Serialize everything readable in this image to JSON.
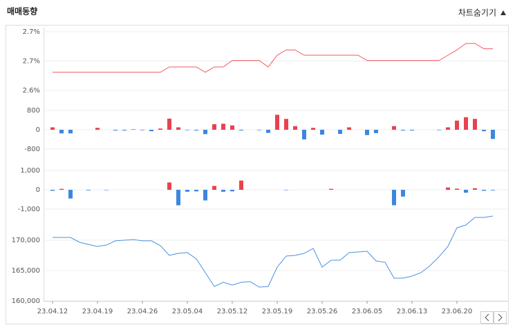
{
  "header": {
    "title": "매매동향",
    "toggle": "차트숨기기"
  },
  "chart_data": [
    {
      "type": "line",
      "color": "#f0585c",
      "values": [
        2.671,
        2.671,
        2.671,
        2.671,
        2.671,
        2.671,
        2.671,
        2.671,
        2.671,
        2.671,
        2.671,
        2.671,
        2.671,
        2.68,
        2.68,
        2.68,
        2.68,
        2.671,
        2.68,
        2.68,
        2.691,
        2.691,
        2.691,
        2.691,
        2.68,
        2.7,
        2.709,
        2.709,
        2.7,
        2.7,
        2.7,
        2.7,
        2.7,
        2.7,
        2.7,
        2.691,
        2.691,
        2.691,
        2.691,
        2.691,
        2.691,
        2.691,
        2.691,
        2.691,
        2.7,
        2.709,
        2.72,
        2.72,
        2.711,
        2.711
      ],
      "ylim": [
        2.64,
        2.74
      ],
      "yticks": [
        {
          "value": 2.74,
          "label": "2.7%"
        },
        {
          "value": 2.69,
          "label": "2.7%"
        },
        {
          "value": 2.64,
          "label": "2.6%"
        }
      ],
      "grid": true
    },
    {
      "type": "bar",
      "colors": {
        "positive": "#e8424f",
        "negative": "#3d86e0"
      },
      "values": [
        100,
        -150,
        -150,
        0,
        0,
        80,
        0,
        -30,
        -30,
        20,
        -20,
        -60,
        50,
        460,
        100,
        -20,
        -30,
        -180,
        230,
        250,
        180,
        -30,
        0,
        -20,
        -130,
        620,
        450,
        150,
        -400,
        80,
        -200,
        0,
        -170,
        100,
        0,
        -220,
        -140,
        0,
        150,
        -30,
        -30,
        0,
        0,
        -20,
        100,
        380,
        520,
        450,
        -60,
        -380
      ],
      "ylim": [
        -1100,
        1100
      ],
      "yticks": [
        800,
        0,
        -800
      ],
      "grid": true
    },
    {
      "type": "bar",
      "colors": {
        "positive": "#e8424f",
        "negative": "#3d86e0"
      },
      "values": [
        -50,
        50,
        -450,
        0,
        -30,
        0,
        -20,
        0,
        0,
        0,
        0,
        0,
        0,
        380,
        -800,
        -100,
        -80,
        -550,
        200,
        -100,
        -80,
        480,
        0,
        0,
        0,
        0,
        -20,
        0,
        0,
        0,
        0,
        50,
        0,
        0,
        0,
        0,
        0,
        0,
        -800,
        -350,
        0,
        0,
        0,
        0,
        120,
        60,
        -150,
        80,
        -50,
        -30
      ],
      "ylim": [
        -1100,
        1100
      ],
      "yticks": [
        {
          "value": 1000,
          "label": "1,000"
        },
        0,
        {
          "value": -1000,
          "label": "-1,000"
        }
      ],
      "grid": true
    },
    {
      "type": "line",
      "color": "#4a90e2",
      "categories": [
        "23.04.12",
        null,
        null,
        null,
        null,
        "23.04.19",
        null,
        null,
        null,
        null,
        "23.04.26",
        null,
        null,
        null,
        null,
        "23.05.04",
        null,
        null,
        null,
        null,
        "23.05.12",
        null,
        null,
        null,
        null,
        "23.05.19",
        null,
        null,
        null,
        null,
        "23.05.26",
        null,
        null,
        null,
        null,
        "23.06.05",
        null,
        null,
        null,
        null,
        "23.06.13",
        null,
        null,
        null,
        null,
        "23.06.20",
        null,
        null,
        null,
        null
      ],
      "values": [
        170450,
        170450,
        170450,
        169660,
        169300,
        168980,
        169200,
        169900,
        170000,
        170100,
        169900,
        169900,
        169100,
        167500,
        167840,
        167950,
        166930,
        164660,
        162390,
        163070,
        162610,
        163070,
        163180,
        162270,
        162390,
        165570,
        167390,
        167500,
        167840,
        168640,
        165570,
        166700,
        166700,
        167950,
        168070,
        168180,
        166590,
        166360,
        163750,
        163750,
        164090,
        164660,
        165800,
        167270,
        168980,
        172050,
        172500,
        173750,
        173750,
        173980
      ],
      "ylim": [
        160000,
        175000
      ],
      "yticks": [
        {
          "value": 170000,
          "label": "170,000"
        },
        {
          "value": 165000,
          "label": "165,000"
        },
        {
          "value": 160000,
          "label": "160,000"
        }
      ],
      "grid": true
    }
  ]
}
